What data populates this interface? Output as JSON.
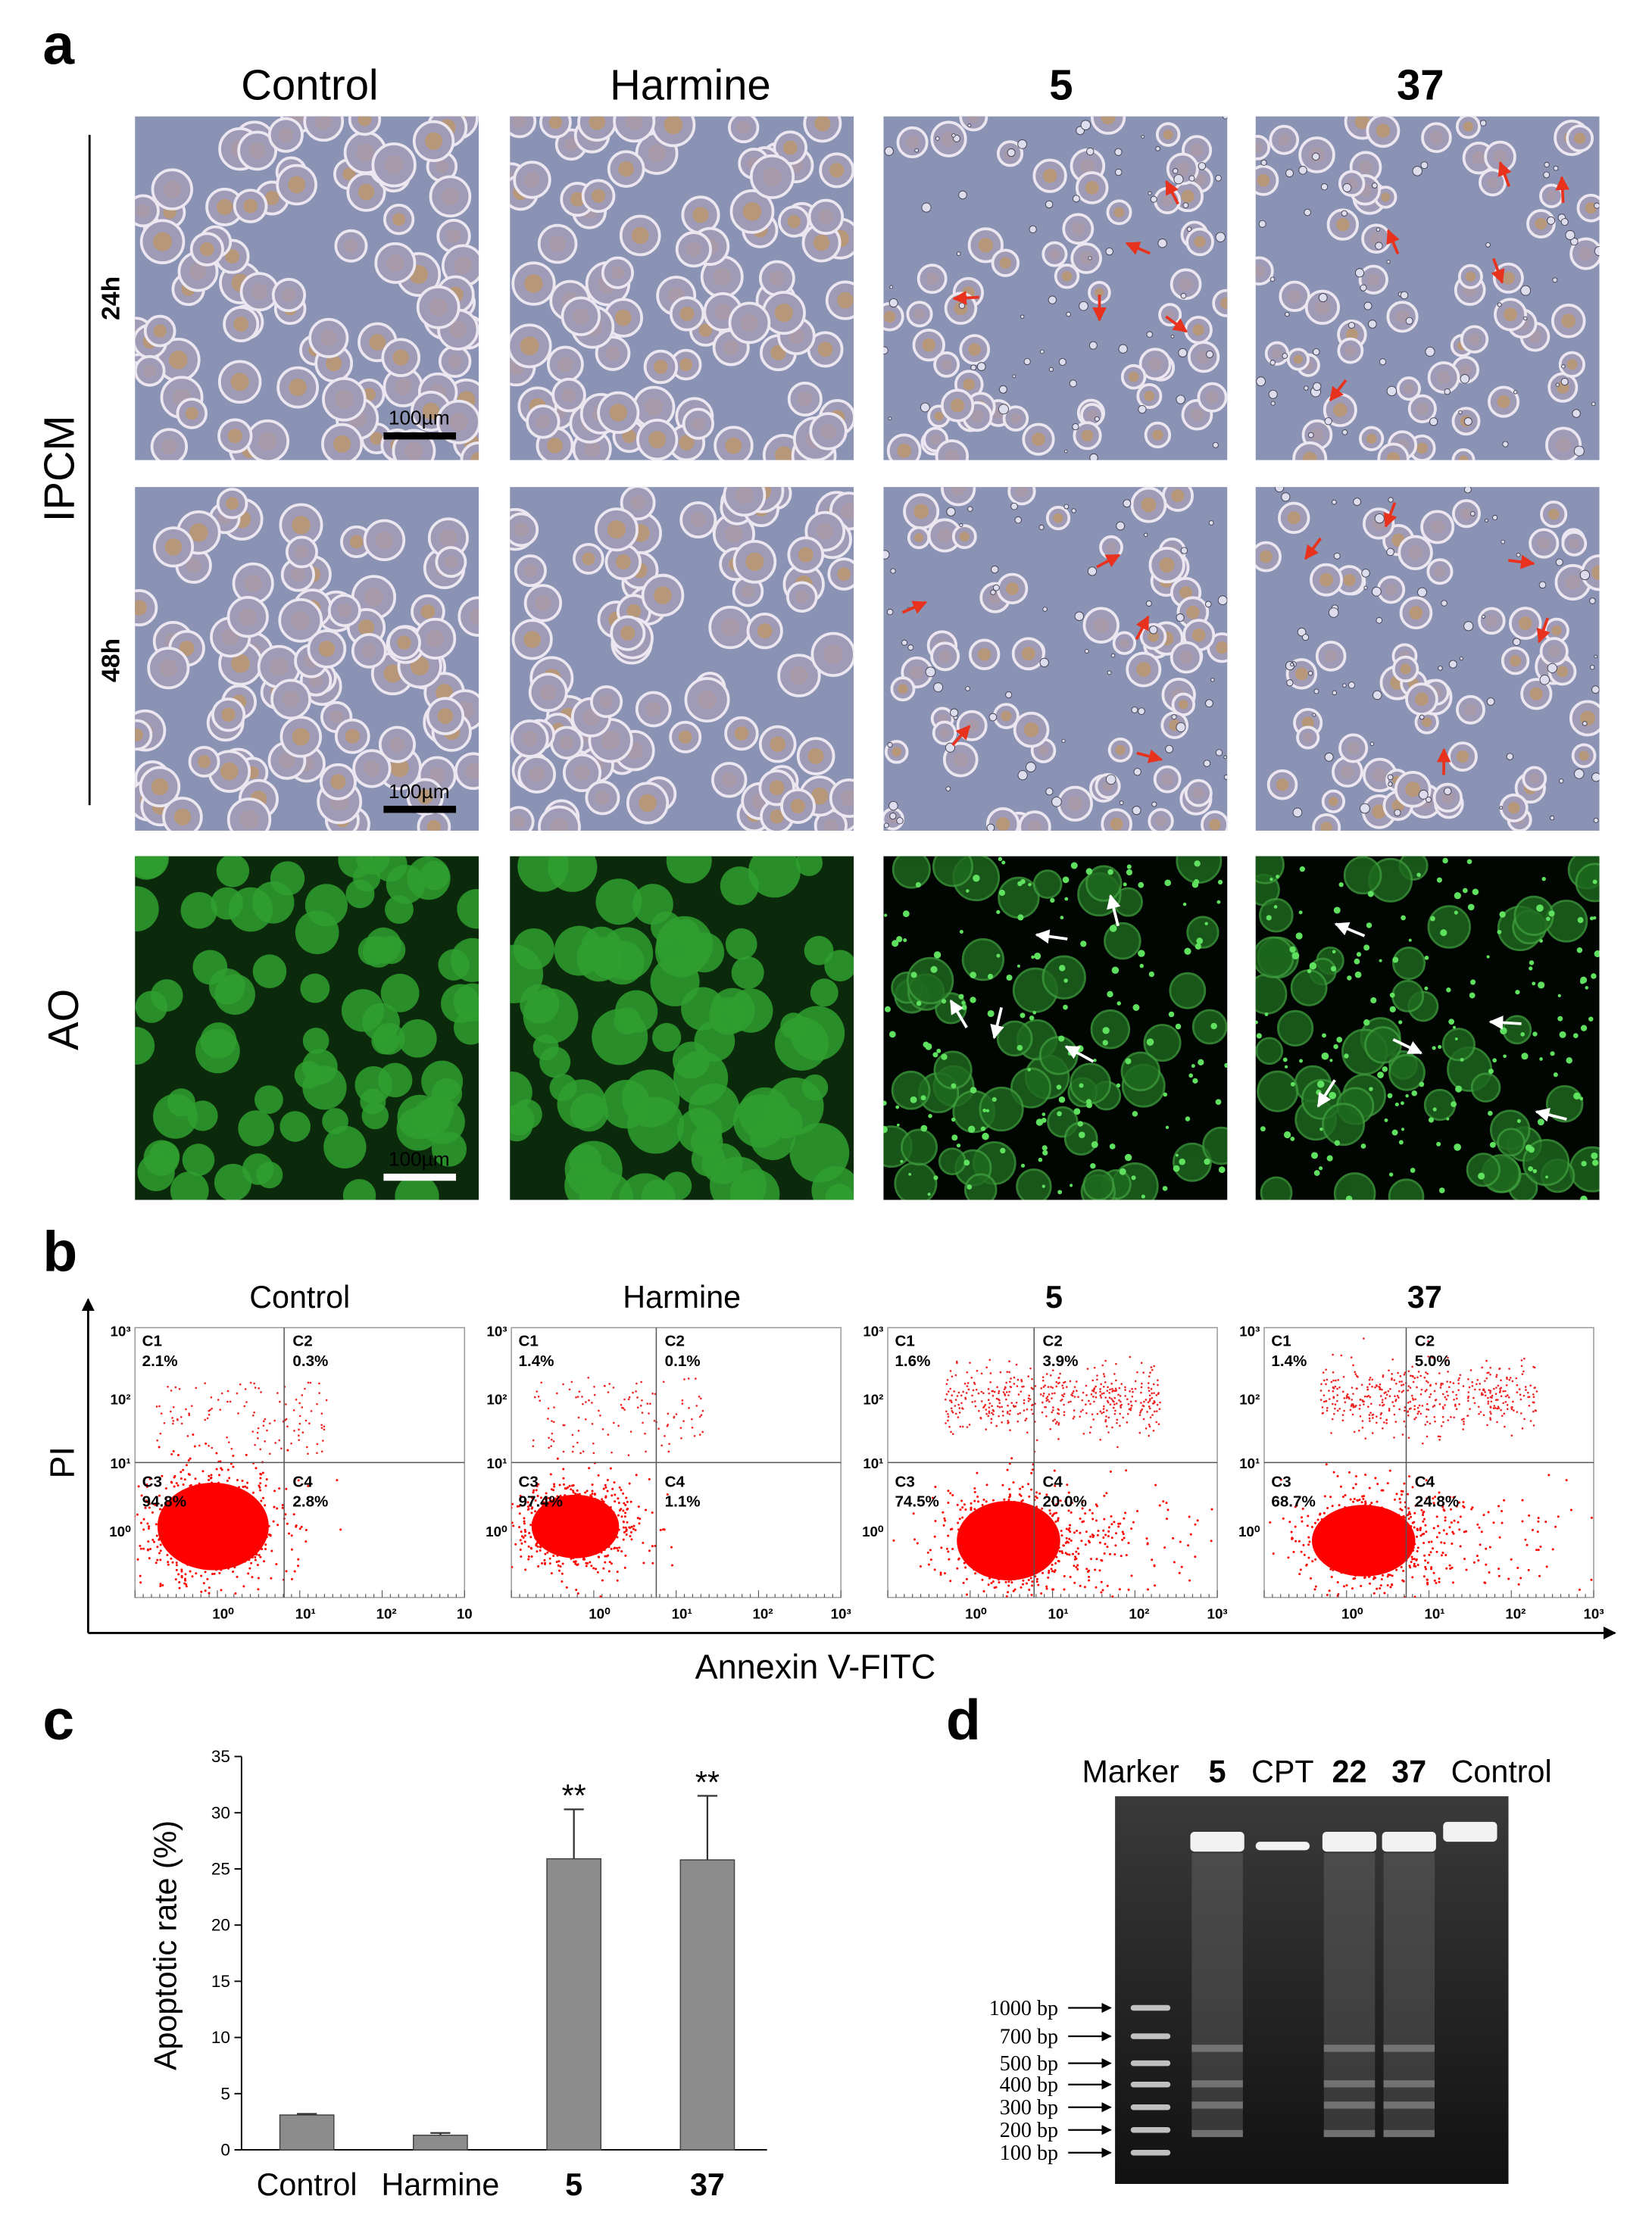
{
  "panel_a": {
    "label": "a",
    "columns": [
      "Control",
      "Harmine",
      "5",
      "37"
    ],
    "group_label": "IPCM",
    "rows": [
      "24h",
      "48h"
    ],
    "fluorescence_label": "AO",
    "scale_bars": [
      "100µm",
      "100µm",
      "100µm"
    ]
  },
  "panel_b": {
    "label": "b",
    "y_axis_label": "PI",
    "x_axis_label": "Annexin V-FITC",
    "yticks": [
      "10³",
      "10²",
      "10¹",
      "10⁰"
    ],
    "plots": [
      {
        "title": "Control",
        "xticks": [
          "10⁰",
          "10¹",
          "10²",
          "10"
        ],
        "quadrants": [
          {
            "name": "C1",
            "value": "2.1%"
          },
          {
            "name": "C2",
            "value": "0.3%"
          },
          {
            "name": "C3",
            "value": "94.8%"
          },
          {
            "name": "C4",
            "value": "2.8%"
          }
        ]
      },
      {
        "title": "Harmine",
        "xticks": [
          "10⁰",
          "10¹",
          "10²",
          "10³"
        ],
        "quadrants": [
          {
            "name": "C1",
            "value": "1.4%"
          },
          {
            "name": "C2",
            "value": "0.1%"
          },
          {
            "name": "C3",
            "value": "97.4%"
          },
          {
            "name": "C4",
            "value": "1.1%"
          }
        ]
      },
      {
        "title": "5",
        "xticks": [
          "10⁰",
          "10¹",
          "10²",
          "10³"
        ],
        "quadrants": [
          {
            "name": "C1",
            "value": "1.6%"
          },
          {
            "name": "C2",
            "value": "3.9%"
          },
          {
            "name": "C3",
            "value": "74.5%"
          },
          {
            "name": "C4",
            "value": "20.0%"
          }
        ]
      },
      {
        "title": "37",
        "xticks": [
          "10⁰",
          "10¹",
          "10²",
          "10³"
        ],
        "quadrants": [
          {
            "name": "C1",
            "value": "1.4%"
          },
          {
            "name": "C2",
            "value": "5.0%"
          },
          {
            "name": "C3",
            "value": "68.7%"
          },
          {
            "name": "C4",
            "value": "24.8%"
          }
        ]
      }
    ]
  },
  "chart_data": {
    "type": "bar",
    "panel_label": "c",
    "y_axis_label": "Apoptotic rate (%)",
    "categories": [
      "Control",
      "Harmine",
      "5",
      "37"
    ],
    "values": [
      3.1,
      1.3,
      25.9,
      25.8
    ],
    "errors": [
      0.1,
      0.2,
      4.4,
      5.7
    ],
    "color": "#8c8c8c",
    "ylim": [
      0,
      35
    ],
    "yticks": [
      0,
      5,
      10,
      15,
      20,
      25,
      30,
      35
    ],
    "annotations": [
      {
        "category": "5",
        "text": "**"
      },
      {
        "category": "37",
        "text": "**"
      }
    ]
  },
  "panel_d": {
    "label": "d",
    "lanes": [
      "Marker",
      "5",
      "CPT",
      "22",
      "37",
      "Control"
    ],
    "markers": [
      "1000 bp",
      "700 bp",
      "500 bp",
      "400 bp",
      "300 bp",
      "200 bp",
      "100 bp"
    ]
  }
}
